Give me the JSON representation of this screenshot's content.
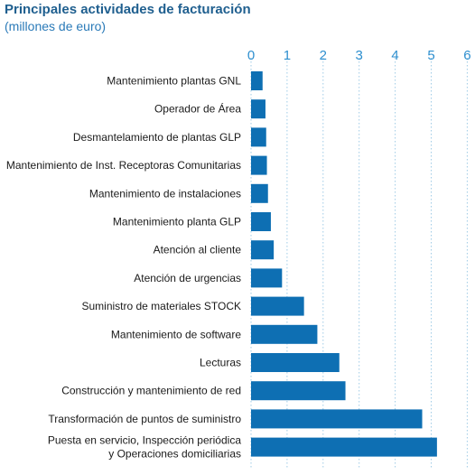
{
  "chart_data": {
    "type": "bar",
    "orientation": "horizontal",
    "title": "Principales actividades de facturación",
    "subtitle": "(millones de euro)",
    "xlim": [
      0,
      6
    ],
    "xticks": [
      "0",
      "1",
      "2",
      "3",
      "4",
      "5",
      "6"
    ],
    "grid": true,
    "colors": {
      "bar": "#0e6fb3",
      "grid": "#9fcbe6",
      "tick": "#2e8fcf",
      "title": "#1f5f8f"
    },
    "categories": [
      [
        "Mantenimiento plantas GNL"
      ],
      [
        "Operador de Área"
      ],
      [
        "Desmantelamiento de plantas GLP"
      ],
      [
        "Mantenimiento de Inst. Receptoras Comunitarias"
      ],
      [
        "Mantenimiento de instalaciones"
      ],
      [
        "Mantenimiento planta GLP"
      ],
      [
        "Atención al cliente"
      ],
      [
        "Atención de urgencias"
      ],
      [
        "Suministro de materiales STOCK"
      ],
      [
        "Mantenimiento de software"
      ],
      [
        "Lecturas"
      ],
      [
        "Construcción y mantenimiento de red"
      ],
      [
        "Transformación de puntos de suministro"
      ],
      [
        "Puesta en servicio, Inspección periódica",
        "y Operaciones domiciliarias"
      ]
    ],
    "values": [
      0.32,
      0.4,
      0.42,
      0.44,
      0.47,
      0.55,
      0.63,
      0.86,
      1.47,
      1.84,
      2.45,
      2.62,
      4.75,
      5.16
    ]
  }
}
